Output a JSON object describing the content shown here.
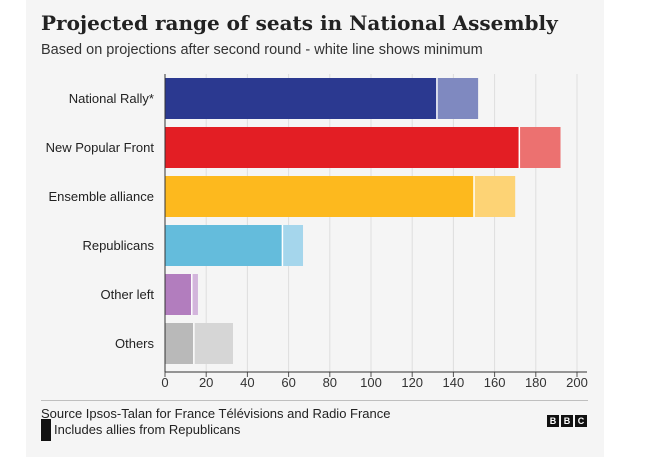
{
  "title": "Projected range of seats in National Assembly",
  "subtitle": "Based on projections after second round - white line shows minimum",
  "source": "Source Ipsos-Talan for France Télévisions and Radio France",
  "note": "Includes allies from Republicans",
  "logo_letters": [
    "B",
    "B",
    "C"
  ],
  "chart_data": {
    "type": "bar",
    "orientation": "horizontal",
    "categories": [
      "National Rally*",
      "New Popular Front",
      "Ensemble alliance",
      "Republicans",
      "Other left",
      "Others"
    ],
    "series": [
      {
        "name": "minimum",
        "values": [
          132,
          172,
          150,
          57,
          13,
          14
        ]
      },
      {
        "name": "maximum",
        "values": [
          152,
          192,
          170,
          67,
          16,
          33
        ]
      }
    ],
    "colors_min": [
      "#2b3990",
      "#e31e24",
      "#fdb91e",
      "#64bcdc",
      "#b27dbe",
      "#b9b9b9"
    ],
    "colors_max": [
      "#7f89c0",
      "#ec7170",
      "#fdd375",
      "#a5d6ec",
      "#d3b5dc",
      "#d6d6d6"
    ],
    "xlim": [
      0,
      200
    ],
    "xticks": [
      "0",
      "20",
      "40",
      "60",
      "80",
      "100",
      "120",
      "140",
      "160",
      "180",
      "200"
    ],
    "grid": true
  }
}
